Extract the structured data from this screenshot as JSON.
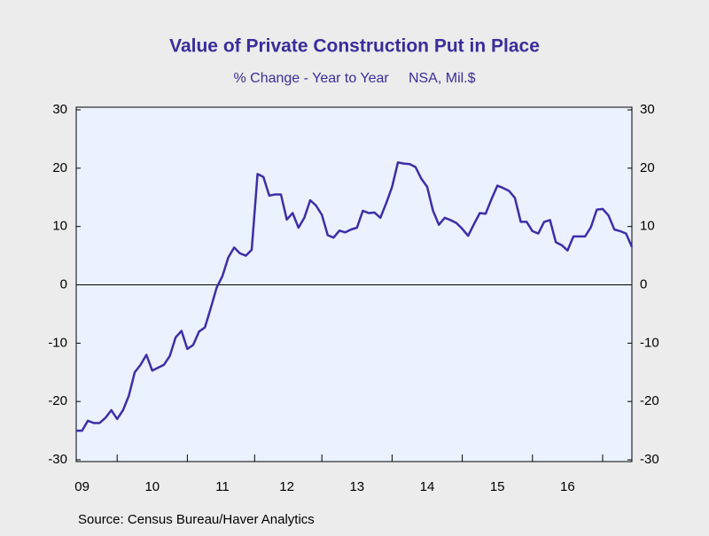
{
  "chart_data": {
    "type": "line",
    "title": "Value of Private Construction Put in Place",
    "subtitle": "% Change - Year to Year     NSA, Mil.$",
    "source": "Source:  Census Bureau/Haver Analytics",
    "categories": [
      null,
      "09",
      null,
      null,
      null,
      null,
      null,
      null,
      null,
      null,
      null,
      null,
      null,
      "10",
      null,
      null,
      null,
      null,
      null,
      null,
      null,
      null,
      null,
      null,
      null,
      "11",
      null,
      null,
      null,
      null,
      null,
      null,
      null,
      null,
      null,
      null,
      "12",
      null,
      null,
      null,
      null,
      null,
      null,
      null,
      null,
      null,
      null,
      null,
      "13",
      null,
      null,
      null,
      null,
      null,
      null,
      null,
      null,
      null,
      null,
      null,
      "14",
      null,
      null,
      null,
      null,
      null,
      null,
      null,
      null,
      null,
      null,
      null,
      "15",
      null,
      null,
      null,
      null,
      null,
      null,
      null,
      null,
      null,
      null,
      null,
      "16",
      null,
      null,
      null,
      null,
      null,
      null,
      null,
      null,
      null,
      null,
      null
    ],
    "series": [
      {
        "color": "#3d2ea8",
        "values": [
          -25,
          -25,
          -23.3,
          -23.7,
          -23.7,
          -22.8,
          -21.5,
          -23,
          -21.5,
          -19,
          -15,
          -13.7,
          -12,
          -14.7,
          -14.2,
          -13.7,
          -12.2,
          -9,
          -7.9,
          -11,
          -10.3,
          -8,
          -7.3,
          -4,
          -0.5,
          1.5,
          4.7,
          6.4,
          5.4,
          5,
          6,
          19,
          18.5,
          15.3,
          15.5,
          15.5,
          11.2,
          12.3,
          9.8,
          11.5,
          14.5,
          13.6,
          12,
          8.5,
          8.1,
          9.3,
          9,
          9.5,
          9.8,
          12.7,
          12.3,
          12.4,
          11.5,
          14,
          16.8,
          21,
          20.8,
          20.7,
          20.2,
          18.2,
          16.8,
          12.7,
          10.3,
          11.5,
          11.1,
          10.6,
          9.6,
          8.4,
          10.4,
          12.3,
          12.2,
          14.7,
          17,
          16.6,
          16.1,
          14.9,
          10.8,
          10.8,
          9.2,
          8.8,
          10.8,
          11.1,
          7.3,
          6.8,
          5.9,
          8.3,
          8.3,
          8.3,
          9.9,
          12.9,
          13,
          11.9,
          9.5,
          9.2,
          8.8,
          6.5
        ]
      }
    ],
    "ylim": [
      -30,
      30
    ],
    "yticks": [
      -30,
      -20,
      -10,
      0,
      10,
      20,
      30
    ],
    "y2lim": [
      -30,
      30
    ],
    "y2ticks": [
      -30,
      -20,
      -10,
      0,
      10,
      20,
      30
    ]
  }
}
